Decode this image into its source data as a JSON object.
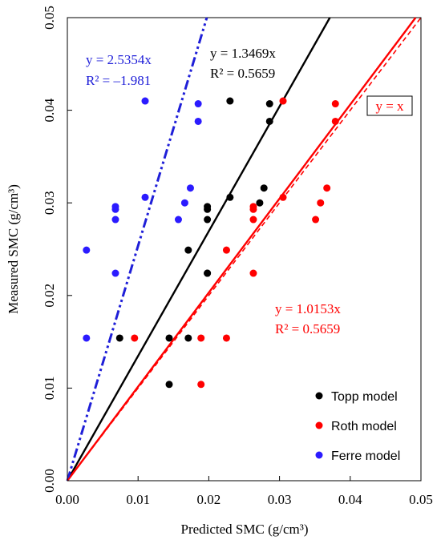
{
  "chart_data": {
    "type": "scatter",
    "xlabel": "Predicted SMC (g/cm³)",
    "ylabel": "Measured SMC (g/cm³)",
    "xlim": [
      0,
      0.05
    ],
    "ylim": [
      0,
      0.05
    ],
    "x_ticks": [
      "0.00",
      "0.01",
      "0.02",
      "0.03",
      "0.04",
      "0.05"
    ],
    "y_ticks": [
      "0.00",
      "0.01",
      "0.02",
      "0.03",
      "0.04",
      "0.05"
    ],
    "grid": false,
    "legend_position": "bottom-right",
    "series": [
      {
        "name": "Topp model",
        "color": "#000000",
        "points": [
          [
            0.0074,
            0.0154
          ],
          [
            0.0144,
            0.0104
          ],
          [
            0.0144,
            0.0154
          ],
          [
            0.0171,
            0.0154
          ],
          [
            0.0171,
            0.0249
          ],
          [
            0.0198,
            0.0224
          ],
          [
            0.0198,
            0.0224
          ],
          [
            0.0198,
            0.0282
          ],
          [
            0.0198,
            0.0293
          ],
          [
            0.0198,
            0.0296
          ],
          [
            0.023,
            0.0306
          ],
          [
            0.023,
            0.041
          ],
          [
            0.0272,
            0.03
          ],
          [
            0.0278,
            0.0316
          ],
          [
            0.0286,
            0.0388
          ],
          [
            0.0286,
            0.0407
          ]
        ]
      },
      {
        "name": "Roth model",
        "color": "#ff0000",
        "points": [
          [
            0.0095,
            0.0154
          ],
          [
            0.0189,
            0.0104
          ],
          [
            0.0189,
            0.0154
          ],
          [
            0.0225,
            0.0249
          ],
          [
            0.0225,
            0.0154
          ],
          [
            0.0263,
            0.0224
          ],
          [
            0.0263,
            0.0282
          ],
          [
            0.0263,
            0.0293
          ],
          [
            0.0263,
            0.0296
          ],
          [
            0.0305,
            0.041
          ],
          [
            0.0305,
            0.0306
          ],
          [
            0.0351,
            0.0282
          ],
          [
            0.0358,
            0.03
          ],
          [
            0.0367,
            0.0316
          ],
          [
            0.0379,
            0.0388
          ],
          [
            0.0379,
            0.0407
          ]
        ]
      },
      {
        "name": "Ferre model",
        "color": "#2b1bff",
        "points": [
          [
            0.0027,
            0.0154
          ],
          [
            0.0027,
            0.0249
          ],
          [
            0.0068,
            0.0224
          ],
          [
            0.0068,
            0.0282
          ],
          [
            0.0068,
            0.0293
          ],
          [
            0.0068,
            0.0296
          ],
          [
            0.011,
            0.0306
          ],
          [
            0.011,
            0.041
          ],
          [
            0.0157,
            0.0282
          ],
          [
            0.0166,
            0.03
          ],
          [
            0.0174,
            0.0316
          ],
          [
            0.0185,
            0.0388
          ],
          [
            0.0185,
            0.0407
          ]
        ]
      }
    ],
    "fit_lines": [
      {
        "series": "Topp model",
        "slope": 1.3469,
        "color": "#000000",
        "style": "solid"
      },
      {
        "series": "Roth model",
        "slope": 1.0153,
        "color": "#ff0000",
        "style": "solid"
      },
      {
        "series": "Ferre model",
        "slope": 2.5354,
        "color": "#1f1fd8",
        "style": "dash-dot-dot"
      },
      {
        "series": "1:1",
        "slope": 1.0,
        "color": "#ff0000",
        "style": "dashed"
      }
    ],
    "annotations": [
      {
        "id": "ferre",
        "line1": "y = 2.5354x",
        "line2": "R² = –1.981",
        "color": "#1f1fd8"
      },
      {
        "id": "topp",
        "line1": "y = 1.3469x",
        "line2": "R² = 0.5659",
        "color": "#000000"
      },
      {
        "id": "roth",
        "line1": "y = 1.0153x",
        "line2": "R² = 0.5659",
        "color": "#ff0000"
      },
      {
        "id": "identity",
        "line1": "y = x",
        "color": "#ff0000",
        "boxed": true
      }
    ]
  }
}
